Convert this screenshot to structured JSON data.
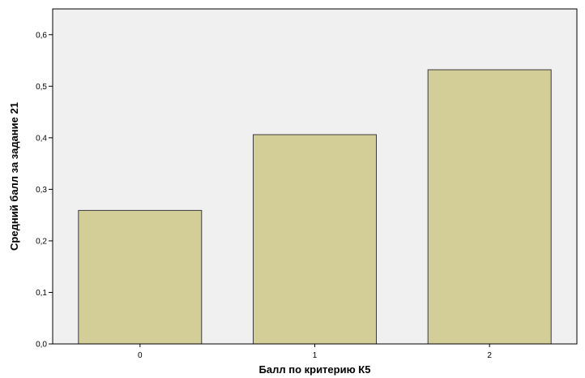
{
  "chart_data": {
    "type": "bar",
    "categories": [
      "0",
      "1",
      "2"
    ],
    "values": [
      0.259,
      0.406,
      0.532
    ],
    "title": "",
    "xlabel": "Балл по критерию К5",
    "ylabel": "Средний балл за задание 21",
    "ylim": [
      0,
      0.65
    ],
    "yticks": [
      0.0,
      0.1,
      0.2,
      0.3,
      0.4,
      0.5,
      0.6
    ],
    "ytick_labels": [
      "0,0",
      "0,1",
      "0,2",
      "0,3",
      "0,4",
      "0,5",
      "0,6"
    ],
    "grid": false,
    "legend": "none",
    "colors": {
      "plot_background": "#f0f0f0",
      "bar_fill": "#d3ce97",
      "bar_stroke": "#3c3c3c",
      "axis": "#000000"
    }
  }
}
